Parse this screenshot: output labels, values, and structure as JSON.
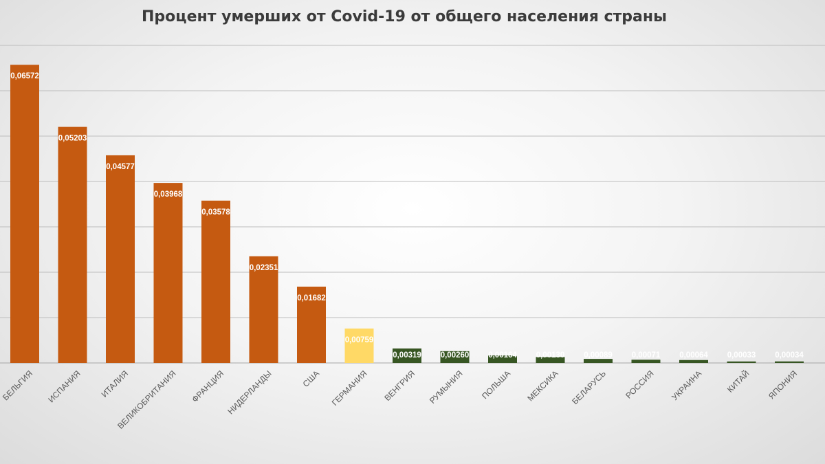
{
  "chart_data": {
    "type": "bar",
    "title": "Процент умерших от Covid-19 от общего населения страны",
    "categories": [
      "БЕЛЬГИЯ",
      "ИСПАНИЯ",
      "ИТАЛИЯ",
      "ВЕЛИКОБРИТАНИЯ",
      "ФРАНЦИЯ",
      "НИДЕРЛАНДЫ",
      "США",
      "ГЕРМАНИЯ",
      "ВЕНГРИЯ",
      "РУМЫНИЯ",
      "ПОЛЬША",
      "МЕКСИКА",
      "БЕЛАРУСЬ",
      "РОССИЯ",
      "УКРАИНА",
      "КИТАЙ",
      "ЯПОНИЯ"
    ],
    "values": [
      0.06572,
      0.05203,
      0.04577,
      0.03968,
      0.03578,
      0.02351,
      0.01682,
      0.00759,
      0.00319,
      0.0026,
      0.00164,
      0.0013,
      0.00089,
      0.00071,
      0.00064,
      0.00033,
      0.00034
    ],
    "value_labels": [
      "0,06572",
      "0,05203",
      "0,04577",
      "0,03968",
      "0,03578",
      "0,02351",
      "0,01682",
      "0,00759",
      "0,00319",
      "0,00260",
      "0,00164",
      "0,00130",
      "0,00089",
      "0,00071",
      "0,00064",
      "0,00033",
      "0,00034"
    ],
    "bar_colors": [
      "#c55a11",
      "#c55a11",
      "#c55a11",
      "#c55a11",
      "#c55a11",
      "#c55a11",
      "#c55a11",
      "#ffd966",
      "#375623",
      "#375623",
      "#375623",
      "#375623",
      "#375623",
      "#375623",
      "#375623",
      "#375623",
      "#375623"
    ],
    "ylim": [
      0,
      0.07
    ],
    "gridlines": [
      0.01,
      0.02,
      0.03,
      0.04,
      0.05,
      0.06,
      0.07
    ],
    "grid": true,
    "legend": false,
    "xlabel": "",
    "ylabel": ""
  }
}
